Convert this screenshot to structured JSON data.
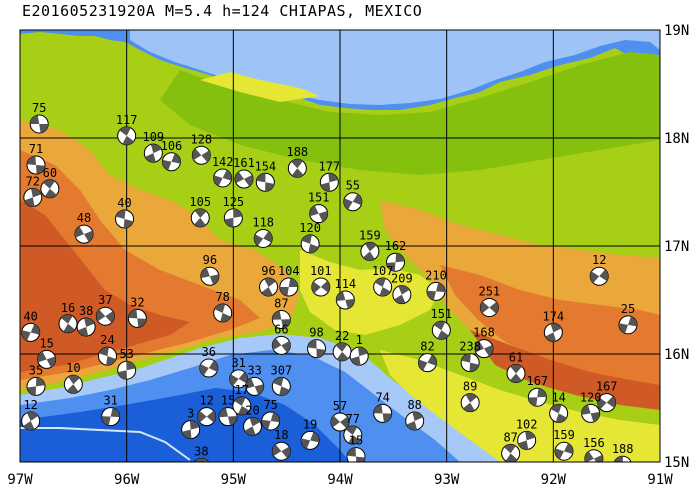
{
  "title": "E201605231920A M=5.4 h=124 CHIAPAS, MEXICO",
  "axes": {
    "lon_labels": [
      "97W",
      "96W",
      "95W",
      "94W",
      "93W",
      "92W",
      "91W"
    ],
    "lat_labels": [
      "19N",
      "18N",
      "17N",
      "16N",
      "15N"
    ]
  },
  "colors": {
    "deep_water": "#1a5fd8",
    "water": "#4e8ff0",
    "shallow": "#a7c9f7",
    "lowland": "#86c00e",
    "plain": "#a6cf16",
    "foothill": "#e6e635",
    "upland": "#eaa83a",
    "highland": "#e37a2f",
    "mountain": "#cf5a26",
    "grid": "#000000",
    "beachball_dark": "#555555",
    "beachball_light": "#ffffff"
  },
  "events": [
    {
      "label": "75",
      "lon": -96.82,
      "lat": 18.13
    },
    {
      "label": "117",
      "lon": -96.0,
      "lat": 18.02
    },
    {
      "label": "109",
      "lon": -95.75,
      "lat": 17.86
    },
    {
      "label": "106",
      "lon": -95.58,
      "lat": 17.78
    },
    {
      "label": "128",
      "lon": -95.3,
      "lat": 17.84
    },
    {
      "label": "71",
      "lon": -96.85,
      "lat": 17.75
    },
    {
      "label": "60",
      "lon": -96.72,
      "lat": 17.53
    },
    {
      "label": "72",
      "lon": -96.88,
      "lat": 17.45
    },
    {
      "label": "142",
      "lon": -95.1,
      "lat": 17.63
    },
    {
      "label": "161",
      "lon": -94.9,
      "lat": 17.62
    },
    {
      "label": "154",
      "lon": -94.7,
      "lat": 17.59
    },
    {
      "label": "188",
      "lon": -94.4,
      "lat": 17.72
    },
    {
      "label": "177",
      "lon": -94.1,
      "lat": 17.59
    },
    {
      "label": "55",
      "lon": -93.88,
      "lat": 17.41
    },
    {
      "label": "48",
      "lon": -96.4,
      "lat": 17.11
    },
    {
      "label": "40",
      "lon": -96.02,
      "lat": 17.25
    },
    {
      "label": "105",
      "lon": -95.31,
      "lat": 17.26
    },
    {
      "label": "125",
      "lon": -95.0,
      "lat": 17.26
    },
    {
      "label": "118",
      "lon": -94.72,
      "lat": 17.07
    },
    {
      "label": "151",
      "lon": -94.2,
      "lat": 17.3
    },
    {
      "label": "120",
      "lon": -94.28,
      "lat": 17.02
    },
    {
      "label": "159",
      "lon": -93.72,
      "lat": 16.95
    },
    {
      "label": "162",
      "lon": -93.48,
      "lat": 16.85
    },
    {
      "label": "12",
      "lon": -91.57,
      "lat": 16.72
    },
    {
      "label": "96",
      "lon": -95.22,
      "lat": 16.72
    },
    {
      "label": "78",
      "lon": -95.1,
      "lat": 16.38
    },
    {
      "label": "96",
      "lon": -94.67,
      "lat": 16.62
    },
    {
      "label": "104",
      "lon": -94.48,
      "lat": 16.62
    },
    {
      "label": "101",
      "lon": -94.18,
      "lat": 16.62
    },
    {
      "label": "114",
      "lon": -93.95,
      "lat": 16.5
    },
    {
      "label": "107",
      "lon": -93.6,
      "lat": 16.62
    },
    {
      "label": "209",
      "lon": -93.42,
      "lat": 16.55
    },
    {
      "label": "210",
      "lon": -93.1,
      "lat": 16.58
    },
    {
      "label": "251",
      "lon": -92.6,
      "lat": 16.43
    },
    {
      "label": "87",
      "lon": -94.55,
      "lat": 16.32
    },
    {
      "label": "151",
      "lon": -93.05,
      "lat": 16.22
    },
    {
      "label": "174",
      "lon": -92.0,
      "lat": 16.2
    },
    {
      "label": "25",
      "lon": -91.3,
      "lat": 16.27
    },
    {
      "label": "37",
      "lon": -96.2,
      "lat": 16.35
    },
    {
      "label": "32",
      "lon": -95.9,
      "lat": 16.33
    },
    {
      "label": "16",
      "lon": -96.55,
      "lat": 16.28
    },
    {
      "label": "38",
      "lon": -96.38,
      "lat": 16.25
    },
    {
      "label": "40",
      "lon": -96.9,
      "lat": 16.2
    },
    {
      "label": "66",
      "lon": -94.55,
      "lat": 16.08
    },
    {
      "label": "98",
      "lon": -94.22,
      "lat": 16.05
    },
    {
      "label": "22",
      "lon": -93.98,
      "lat": 16.02
    },
    {
      "label": "1",
      "lon": -93.82,
      "lat": 15.98
    },
    {
      "label": "82",
      "lon": -93.18,
      "lat": 15.92
    },
    {
      "label": "168",
      "lon": -92.65,
      "lat": 16.05
    },
    {
      "label": "238",
      "lon": -92.78,
      "lat": 15.92
    },
    {
      "label": "61",
      "lon": -92.35,
      "lat": 15.82
    },
    {
      "label": "53",
      "lon": -96.0,
      "lat": 15.85
    },
    {
      "label": "36",
      "lon": -95.23,
      "lat": 15.87
    },
    {
      "label": "15",
      "lon": -96.75,
      "lat": 15.95
    },
    {
      "label": "24",
      "lon": -96.18,
      "lat": 15.98
    },
    {
      "label": "10",
      "lon": -96.5,
      "lat": 15.72
    },
    {
      "label": "35",
      "lon": -96.85,
      "lat": 15.7
    },
    {
      "label": "31",
      "lon": -94.95,
      "lat": 15.77
    },
    {
      "label": "33",
      "lon": -94.8,
      "lat": 15.7
    },
    {
      "label": "307",
      "lon": -94.55,
      "lat": 15.7
    },
    {
      "label": "89",
      "lon": -92.78,
      "lat": 15.55
    },
    {
      "label": "167",
      "lon": -92.15,
      "lat": 15.6
    },
    {
      "label": "167",
      "lon": -91.5,
      "lat": 15.55
    },
    {
      "label": "120",
      "lon": -91.65,
      "lat": 15.45
    },
    {
      "label": "14",
      "lon": -91.95,
      "lat": 15.45
    },
    {
      "label": "12",
      "lon": -96.9,
      "lat": 15.38
    },
    {
      "label": "31",
      "lon": -96.15,
      "lat": 15.42
    },
    {
      "label": "12",
      "lon": -95.25,
      "lat": 15.42
    },
    {
      "label": "15",
      "lon": -95.05,
      "lat": 15.42
    },
    {
      "label": "17",
      "lon": -94.92,
      "lat": 15.52
    },
    {
      "label": "20",
      "lon": -94.82,
      "lat": 15.33
    },
    {
      "label": "75",
      "lon": -94.65,
      "lat": 15.38
    },
    {
      "label": "57",
      "lon": -94.0,
      "lat": 15.37
    },
    {
      "label": "74",
      "lon": -93.6,
      "lat": 15.45
    },
    {
      "label": "77",
      "lon": -93.88,
      "lat": 15.25
    },
    {
      "label": "88",
      "lon": -93.3,
      "lat": 15.38
    },
    {
      "label": "19",
      "lon": -94.28,
      "lat": 15.2
    },
    {
      "label": "18",
      "lon": -94.55,
      "lat": 15.1
    },
    {
      "label": "15",
      "lon": -93.85,
      "lat": 15.05
    },
    {
      "label": "87",
      "lon": -92.4,
      "lat": 15.08
    },
    {
      "label": "102",
      "lon": -92.25,
      "lat": 15.2
    },
    {
      "label": "159",
      "lon": -91.9,
      "lat": 15.1
    },
    {
      "label": "156",
      "lon": -91.62,
      "lat": 15.03
    },
    {
      "label": "188",
      "lon": -91.35,
      "lat": 14.97
    },
    {
      "label": "38",
      "lon": -95.3,
      "lat": 14.95
    },
    {
      "label": "3",
      "lon": -95.4,
      "lat": 15.3
    }
  ]
}
